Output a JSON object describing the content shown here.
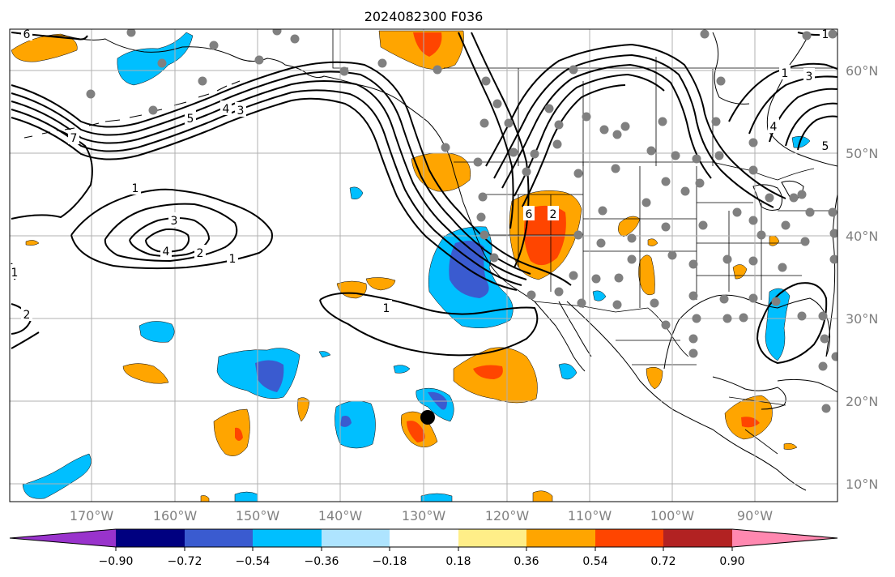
{
  "title": "2024082300 F036",
  "map": {
    "ocean_color": "#ffffff",
    "grid_color": "#b0b0b0",
    "lat_labels": [
      "60°N",
      "50°N",
      "40°N",
      "30°N",
      "20°N",
      "10°N"
    ],
    "lon_labels": [
      "170°W",
      "160°W",
      "150°W",
      "140°W",
      "130°W",
      "120°W",
      "110°W",
      "100°W",
      "90°W"
    ],
    "contour_labels": [
      "1",
      "2",
      "3",
      "4",
      "5",
      "6",
      "7"
    ],
    "storm_marker": "black-dot"
  },
  "colorbar": {
    "colors": [
      "#9933cc",
      "#000080",
      "#3a5bd0",
      "#00bfff",
      "#aee4ff",
      "#ffffff",
      "#ffee88",
      "#ffa500",
      "#ff4500",
      "#b22222",
      "#ff88b0"
    ],
    "tick_labels": [
      "−0.90",
      "−0.72",
      "−0.54",
      "−0.36",
      "−0.18",
      "0.18",
      "0.36",
      "0.54",
      "0.72",
      "0.90"
    ]
  }
}
